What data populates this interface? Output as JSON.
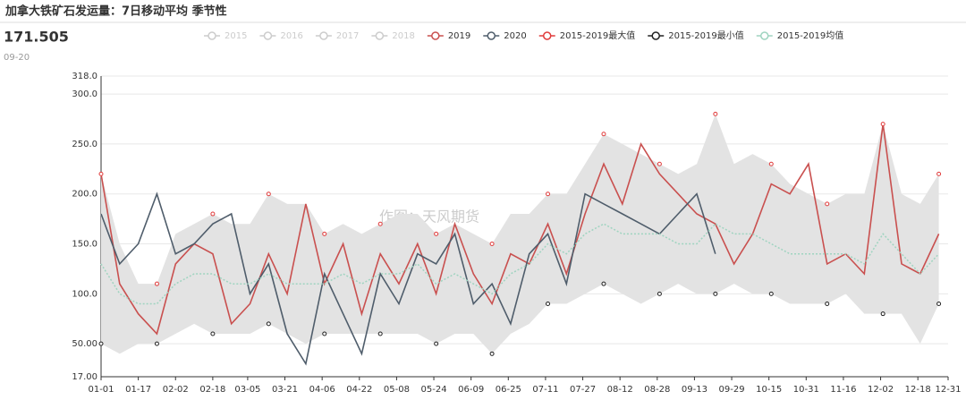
{
  "chart_data": {
    "type": "line",
    "title": "加拿大铁矿石发运量：7日移动平均 季节性",
    "latest_value": "171.505",
    "latest_date": "09-20",
    "watermark": "作图：天风期货",
    "hidden_series": [
      "2015",
      "2016",
      "2017",
      "2018"
    ],
    "x": [
      0,
      8,
      16,
      24,
      32,
      40,
      48,
      56,
      64,
      72,
      80,
      88,
      96,
      104,
      112,
      120,
      128,
      136,
      144,
      152,
      160,
      168,
      176,
      184,
      192,
      200,
      208,
      216,
      224,
      232,
      240,
      248,
      256,
      264,
      272,
      280,
      288,
      296,
      304,
      312,
      320,
      328,
      336,
      344,
      352,
      360
    ],
    "xlim": [
      0,
      364
    ],
    "xticks": [
      {
        "value": 0,
        "label": "01-01"
      },
      {
        "value": 16,
        "label": "01-17"
      },
      {
        "value": 32,
        "label": "02-02"
      },
      {
        "value": 48,
        "label": "02-18"
      },
      {
        "value": 63,
        "label": "03-05"
      },
      {
        "value": 79,
        "label": "03-21"
      },
      {
        "value": 95,
        "label": "04-06"
      },
      {
        "value": 111,
        "label": "04-22"
      },
      {
        "value": 127,
        "label": "05-08"
      },
      {
        "value": 143,
        "label": "05-24"
      },
      {
        "value": 159,
        "label": "06-09"
      },
      {
        "value": 175,
        "label": "06-25"
      },
      {
        "value": 191,
        "label": "07-11"
      },
      {
        "value": 207,
        "label": "07-27"
      },
      {
        "value": 223,
        "label": "08-12"
      },
      {
        "value": 239,
        "label": "08-28"
      },
      {
        "value": 255,
        "label": "09-13"
      },
      {
        "value": 271,
        "label": "09-29"
      },
      {
        "value": 287,
        "label": "10-15"
      },
      {
        "value": 303,
        "label": "10-31"
      },
      {
        "value": 319,
        "label": "11-16"
      },
      {
        "value": 335,
        "label": "12-02"
      },
      {
        "value": 351,
        "label": "12-18"
      },
      {
        "value": 364,
        "label": "12-31"
      }
    ],
    "ylim": [
      17,
      318
    ],
    "yticks": [
      {
        "value": 17,
        "label": "17.00"
      },
      {
        "value": 50,
        "label": "50.00"
      },
      {
        "value": 100,
        "label": "100.0"
      },
      {
        "value": 150,
        "label": "150.0"
      },
      {
        "value": 200,
        "label": "200.0"
      },
      {
        "value": 250,
        "label": "250.0"
      },
      {
        "value": 300,
        "label": "300.0"
      },
      {
        "value": 318,
        "label": "318.0"
      }
    ],
    "grid": true,
    "series": [
      {
        "name": "2019",
        "color": "#c9504f",
        "style": "line",
        "values": [
          220,
          110,
          80,
          60,
          130,
          150,
          140,
          70,
          90,
          140,
          100,
          190,
          110,
          150,
          80,
          140,
          110,
          150,
          100,
          170,
          120,
          90,
          140,
          130,
          170,
          120,
          180,
          230,
          190,
          250,
          220,
          200,
          180,
          170,
          130,
          160,
          210,
          200,
          230,
          130,
          140,
          120,
          270,
          130,
          120,
          160
        ]
      },
      {
        "name": "2020",
        "color": "#4f5d6b",
        "style": "line",
        "values": [
          180,
          130,
          150,
          200,
          140,
          150,
          170,
          180,
          100,
          130,
          60,
          30,
          120,
          80,
          40,
          120,
          90,
          140,
          130,
          160,
          90,
          110,
          70,
          140,
          160,
          110,
          200,
          190,
          180,
          170,
          160,
          180,
          200,
          140,
          null,
          null,
          null,
          null,
          null,
          null,
          null,
          null,
          null,
          null,
          null,
          null
        ]
      },
      {
        "name": "2015-2019最大值",
        "color": "#e03b3b",
        "style": "points",
        "values": [
          220,
          150,
          110,
          110,
          160,
          170,
          180,
          170,
          170,
          200,
          190,
          190,
          160,
          170,
          160,
          170,
          180,
          180,
          160,
          170,
          160,
          150,
          180,
          180,
          200,
          200,
          230,
          260,
          250,
          240,
          230,
          220,
          230,
          280,
          230,
          240,
          230,
          210,
          200,
          190,
          200,
          200,
          270,
          200,
          190,
          220
        ]
      },
      {
        "name": "2015-2019最小值",
        "color": "#222222",
        "style": "points",
        "values": [
          50,
          40,
          50,
          50,
          60,
          70,
          60,
          60,
          60,
          70,
          60,
          50,
          60,
          60,
          60,
          60,
          60,
          60,
          50,
          60,
          60,
          40,
          60,
          70,
          90,
          90,
          100,
          110,
          100,
          90,
          100,
          110,
          100,
          100,
          110,
          100,
          100,
          90,
          90,
          90,
          100,
          80,
          80,
          80,
          50,
          90
        ]
      },
      {
        "name": "2015-2019均值",
        "color": "#9fd4c0",
        "style": "dotted",
        "values": [
          130,
          100,
          90,
          90,
          110,
          120,
          120,
          110,
          110,
          120,
          110,
          110,
          110,
          120,
          110,
          120,
          120,
          130,
          110,
          120,
          110,
          100,
          120,
          130,
          150,
          140,
          160,
          170,
          160,
          160,
          160,
          150,
          150,
          170,
          160,
          160,
          150,
          140,
          140,
          140,
          140,
          130,
          160,
          140,
          120,
          140
        ]
      }
    ]
  }
}
